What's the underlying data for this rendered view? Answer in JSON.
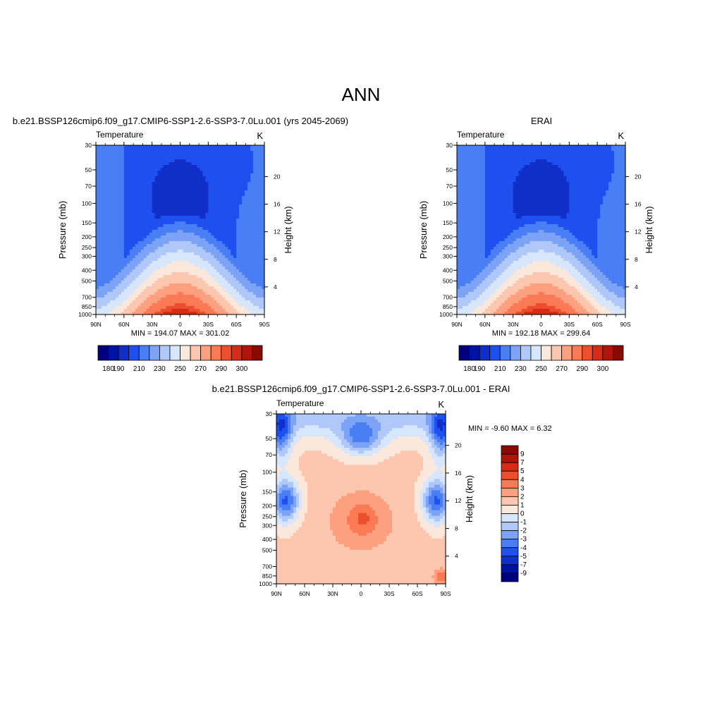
{
  "figure_title": "ANN",
  "chart_data": [
    {
      "type": "heatmap",
      "id": "model",
      "case_title": "b.e21.BSSP126cmip6.f09_g17.CMIP6-SSP1-2.6-SSP3-7.0Lu.001 (yrs 2045-2069)",
      "variable": "Temperature",
      "units": "K",
      "xlabel": "",
      "ylabel": "Pressure (mb)",
      "y2label": "Height (km)",
      "x_ticks": [
        "90N",
        "60N",
        "30N",
        "0",
        "30S",
        "60S",
        "90S"
      ],
      "x_values": [
        90,
        60,
        30,
        0,
        -30,
        -60,
        -90
      ],
      "y_ticks": [
        30,
        50,
        70,
        100,
        150,
        200,
        250,
        300,
        400,
        500,
        700,
        850,
        1000
      ],
      "y_range": [
        30,
        1000
      ],
      "y2_ticks": [
        4,
        8,
        12,
        16,
        20
      ],
      "stats_text": "MIN = 194.07  MAX = 301.02",
      "min": 194.07,
      "max": 301.02,
      "colorbar_labels": [
        "180",
        "190",
        "210",
        "230",
        "250",
        "270",
        "290",
        "300"
      ],
      "colorbar_orientation": "horizontal"
    },
    {
      "type": "heatmap",
      "id": "obs",
      "case_title": "ERAI",
      "variable": "Temperature",
      "units": "K",
      "xlabel": "",
      "ylabel": "Pressure (mb)",
      "y2label": "Height (km)",
      "x_ticks": [
        "90N",
        "60N",
        "30N",
        "0",
        "30S",
        "60S",
        "90S"
      ],
      "x_values": [
        90,
        60,
        30,
        0,
        -30,
        -60,
        -90
      ],
      "y_ticks": [
        30,
        50,
        70,
        100,
        150,
        200,
        250,
        300,
        400,
        500,
        700,
        850,
        1000
      ],
      "y_range": [
        30,
        1000
      ],
      "y2_ticks": [
        4,
        8,
        12,
        16,
        20
      ],
      "stats_text": "MIN = 192.18  MAX = 299.64",
      "min": 192.18,
      "max": 299.64,
      "colorbar_labels": [
        "180",
        "190",
        "210",
        "230",
        "250",
        "270",
        "290",
        "300"
      ],
      "colorbar_orientation": "horizontal"
    },
    {
      "type": "heatmap",
      "id": "diff",
      "case_title": "b.e21.BSSP126cmip6.f09_g17.CMIP6-SSP1-2.6-SSP3-7.0Lu.001 - ERAI",
      "variable": "Temperature",
      "units": "K",
      "xlabel": "",
      "ylabel": "Pressure (mb)",
      "y2label": "Height (km)",
      "x_ticks": [
        "90N",
        "60N",
        "30N",
        "0",
        "30S",
        "60S",
        "90S"
      ],
      "x_values": [
        90,
        60,
        30,
        0,
        -30,
        -60,
        -90
      ],
      "y_ticks": [
        30,
        50,
        70,
        100,
        150,
        200,
        250,
        300,
        400,
        500,
        700,
        850,
        1000
      ],
      "y_range": [
        30,
        1000
      ],
      "y2_ticks": [
        4,
        8,
        12,
        16,
        20
      ],
      "stats_text": "MIN =  -9.60  MAX =   6.32",
      "min": -9.6,
      "max": 6.32,
      "colorbar_labels": [
        "9",
        "7",
        "5",
        "4",
        "3",
        "2",
        "1",
        "0",
        "-1",
        "-2",
        "-3",
        "-4",
        "-5",
        "-7",
        "-9"
      ],
      "colorbar_orientation": "vertical"
    }
  ],
  "colors": {
    "abs_scale": [
      "#00007f",
      "#0012a3",
      "#0f2fc8",
      "#1e50f0",
      "#4a7ef5",
      "#7da3f7",
      "#b0c8f9",
      "#d8e6fb",
      "#fbe8dc",
      "#fcc7ae",
      "#fca080",
      "#f97a55",
      "#ed4f2c",
      "#d52d15",
      "#b0150b",
      "#870a05"
    ],
    "diff_scale": [
      "#870a05",
      "#b0150b",
      "#d52d15",
      "#ed4f2c",
      "#f97a55",
      "#fca080",
      "#fcc7ae",
      "#fbe8dc",
      "#d8e6fb",
      "#b0c8f9",
      "#7da3f7",
      "#4a7ef5",
      "#1e50f0",
      "#0f2fc8",
      "#0012a3",
      "#00007f"
    ]
  }
}
